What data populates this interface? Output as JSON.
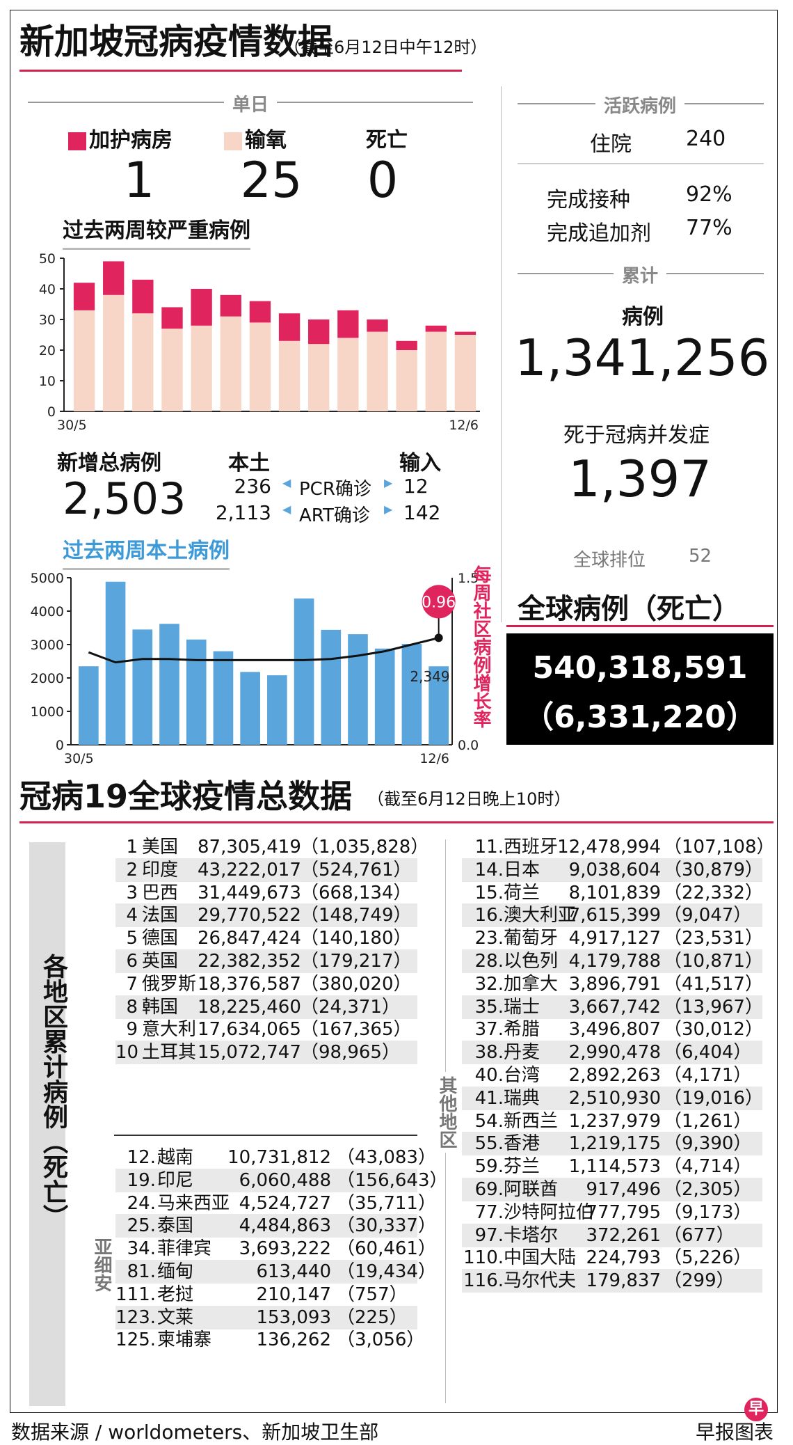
{
  "header": {
    "title": "新加坡冠病疫情数据",
    "subtitle": "（截至6月12日中午12时）"
  },
  "daily": {
    "section": "单日",
    "items": [
      {
        "label": "加护病房",
        "value": "1",
        "color": "#e0245e"
      },
      {
        "label": "输氧",
        "value": "25",
        "color": "#f7d6c8"
      },
      {
        "label": "死亡",
        "value": "0"
      }
    ]
  },
  "active": {
    "section": "活跃病例",
    "hospital_label": "住院",
    "hospital_value": "240",
    "vax_label": "完成接种",
    "vax_value": "92%",
    "booster_label": "完成追加剂",
    "booster_value": "77%"
  },
  "cumulative": {
    "section": "累计",
    "cases_label": "病例",
    "cases_value": "1,341,256",
    "deaths_label": "死于冠病并发症",
    "deaths_value": "1,397",
    "rank_label": "全球排位",
    "rank_value": "52"
  },
  "global": {
    "title": "全球病例（死亡）",
    "cases": "540,318,591",
    "deaths": "（6,331,220）"
  },
  "new_cases": {
    "label": "新增总病例",
    "total": "2,503",
    "local_label": "本土",
    "import_label": "输入",
    "pcr_label": "PCR确诊",
    "pcr_local": "236",
    "pcr_import": "12",
    "art_label": "ART确诊",
    "art_local": "2,113",
    "art_import": "142"
  },
  "chart_data": [
    {
      "type": "bar",
      "title": "过去两周较严重病例",
      "x_start": "30/5",
      "x_end": "12/6",
      "ylim": [
        0,
        50
      ],
      "y_ticks": [
        "0",
        "10",
        "20",
        "30",
        "40",
        "50"
      ],
      "series": [
        {
          "name": "输氧",
          "color": "#f7d6c8",
          "values": [
            33,
            38,
            32,
            27,
            28,
            31,
            29,
            23,
            22,
            24,
            26,
            20,
            26,
            25
          ]
        },
        {
          "name": "加护病房",
          "color": "#e0245e",
          "values": [
            9,
            11,
            11,
            7,
            12,
            7,
            7,
            9,
            8,
            9,
            4,
            3,
            2,
            1
          ]
        }
      ]
    },
    {
      "type": "bar",
      "title": "过去两周本土病例",
      "x_start": "30/5",
      "x_end": "12/6",
      "ylim": [
        0,
        5000
      ],
      "y_ticks": [
        "0",
        "1000",
        "2000",
        "3000",
        "4000",
        "5000"
      ],
      "y2lim": [
        0,
        1.5
      ],
      "y2_ticks": [
        "0.0",
        "1.5"
      ],
      "y2_label": "每周社区病例增长率",
      "bar_color": "#5aa6dc",
      "values": [
        2350,
        4880,
        3450,
        3620,
        3150,
        2800,
        2180,
        2080,
        4380,
        3440,
        3310,
        2880,
        3020,
        2349
      ],
      "ratio": [
        0.83,
        0.74,
        0.77,
        0.77,
        0.76,
        0.76,
        0.76,
        0.76,
        0.76,
        0.77,
        0.8,
        0.84,
        0.9,
        0.96
      ],
      "last_value_label": "2,349",
      "ratio_label": "0.96"
    }
  ],
  "world": {
    "title": "冠病19全球疫情总数据",
    "subtitle": "（截至6月12日晚上10时）",
    "side_label": "各地区累计病例（死亡）",
    "asean_label": "亚细安",
    "other_label": "其他地区",
    "top10": [
      {
        "rank": "1",
        "name": "美国",
        "cases": "87,305,419",
        "deaths": "（1,035,828）"
      },
      {
        "rank": "2",
        "name": "印度",
        "cases": "43,222,017",
        "deaths": "（524,761）"
      },
      {
        "rank": "3",
        "name": "巴西",
        "cases": "31,449,673",
        "deaths": "（668,134）"
      },
      {
        "rank": "4",
        "name": "法国",
        "cases": "29,770,522",
        "deaths": "（148,749）"
      },
      {
        "rank": "5",
        "name": "德国",
        "cases": "26,847,424",
        "deaths": "（140,180）"
      },
      {
        "rank": "6",
        "name": "英国",
        "cases": "22,382,352",
        "deaths": "（179,217）"
      },
      {
        "rank": "7",
        "name": "俄罗斯",
        "cases": "18,376,587",
        "deaths": "（380,020）"
      },
      {
        "rank": "8",
        "name": "韩国",
        "cases": "18,225,460",
        "deaths": "（24,371）"
      },
      {
        "rank": "9",
        "name": "意大利",
        "cases": "17,634,065",
        "deaths": "（167,365）"
      },
      {
        "rank": "10",
        "name": "土耳其",
        "cases": "15,072,747",
        "deaths": "（98,965）"
      }
    ],
    "asean": [
      {
        "rank": "12.",
        "name": "越南",
        "cases": "10,731,812",
        "deaths": "（43,083）"
      },
      {
        "rank": "19.",
        "name": "印尼",
        "cases": "6,060,488",
        "deaths": "（156,643）"
      },
      {
        "rank": "24.",
        "name": "马来西亚",
        "cases": "4,524,727",
        "deaths": "（35,711）"
      },
      {
        "rank": "25.",
        "name": "泰国",
        "cases": "4,484,863",
        "deaths": "（30,337）"
      },
      {
        "rank": "34.",
        "name": "菲律宾",
        "cases": "3,693,222",
        "deaths": "（60,461）"
      },
      {
        "rank": "81.",
        "name": "缅甸",
        "cases": "613,440",
        "deaths": "（19,434）"
      },
      {
        "rank": "111.",
        "name": "老挝",
        "cases": "210,147",
        "deaths": "（757）"
      },
      {
        "rank": "123.",
        "name": "文莱",
        "cases": "153,093",
        "deaths": "（225）"
      },
      {
        "rank": "125.",
        "name": "柬埔寨",
        "cases": "136,262",
        "deaths": "（3,056）"
      }
    ],
    "others": [
      {
        "rank": "11.",
        "name": "西班牙",
        "cases": "12,478,994",
        "deaths": "（107,108）"
      },
      {
        "rank": "14.",
        "name": "日本",
        "cases": "9,038,604",
        "deaths": "（30,879）"
      },
      {
        "rank": "15.",
        "name": "荷兰",
        "cases": "8,101,839",
        "deaths": "（22,332）"
      },
      {
        "rank": "16.",
        "name": "澳大利亚",
        "cases": "7,615,399",
        "deaths": "（9,047）"
      },
      {
        "rank": "23.",
        "name": "葡萄牙",
        "cases": "4,917,127",
        "deaths": "（23,531）"
      },
      {
        "rank": "28.",
        "name": "以色列",
        "cases": "4,179,788",
        "deaths": "（10,871）"
      },
      {
        "rank": "32.",
        "name": "加拿大",
        "cases": "3,896,791",
        "deaths": "（41,517）"
      },
      {
        "rank": "35.",
        "name": "瑞士",
        "cases": "3,667,742",
        "deaths": "（13,967）"
      },
      {
        "rank": "37.",
        "name": "希腊",
        "cases": "3,496,807",
        "deaths": "（30,012）"
      },
      {
        "rank": "38.",
        "name": "丹麦",
        "cases": "2,990,478",
        "deaths": "（6,404）"
      },
      {
        "rank": "40.",
        "name": "台湾",
        "cases": "2,892,263",
        "deaths": "（4,171）"
      },
      {
        "rank": "41.",
        "name": "瑞典",
        "cases": "2,510,930",
        "deaths": "（19,016）"
      },
      {
        "rank": "54.",
        "name": "新西兰",
        "cases": "1,237,979",
        "deaths": "（1,261）"
      },
      {
        "rank": "55.",
        "name": "香港",
        "cases": "1,219,175",
        "deaths": "（9,390）"
      },
      {
        "rank": "59.",
        "name": "芬兰",
        "cases": "1,114,573",
        "deaths": "（4,714）"
      },
      {
        "rank": "69.",
        "name": "阿联酋",
        "cases": "917,496",
        "deaths": "（2,305）"
      },
      {
        "rank": "77.",
        "name": "沙特阿拉伯",
        "cases": "777,795",
        "deaths": "（9,173）"
      },
      {
        "rank": "97.",
        "name": "卡塔尔",
        "cases": "372,261",
        "deaths": "（677）"
      },
      {
        "rank": "110.",
        "name": "中国大陆",
        "cases": "224,793",
        "deaths": "（5,226）"
      },
      {
        "rank": "116.",
        "name": "马尔代夫",
        "cases": "179,837",
        "deaths": "（299）"
      }
    ]
  },
  "footer": {
    "source": "数据来源 / worldometers、新加坡卫生部",
    "credit": "早报图表",
    "logo_char": "早"
  }
}
